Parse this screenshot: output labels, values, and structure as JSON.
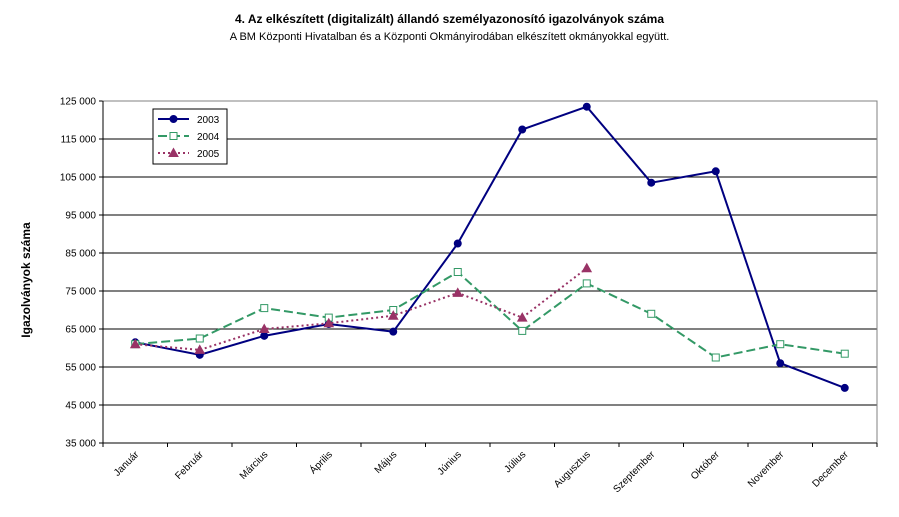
{
  "chart_data": {
    "type": "line",
    "title": "4. Az elkészített (digitalizált) állandó személyazonosító igazolványok száma",
    "subtitle": "A BM Központi Hivatalban és a Központi Okmányirodában elkészített okmányokkal együtt.",
    "xlabel": "",
    "ylabel": "Igazolványok száma",
    "ylim": [
      35000,
      125000
    ],
    "yticks": [
      35000,
      45000,
      55000,
      65000,
      75000,
      85000,
      95000,
      105000,
      115000,
      125000
    ],
    "ytick_labels": [
      "35 000",
      "45 000",
      "55 000",
      "65 000",
      "75 000",
      "85 000",
      "95 000",
      "105 000",
      "115 000",
      "125 000"
    ],
    "categories": [
      "Január",
      "Február",
      "Március",
      "Április",
      "Május",
      "Június",
      "Július",
      "Augusztus",
      "Szeptember",
      "Október",
      "November",
      "December"
    ],
    "grid": true,
    "legend_position": "top-left",
    "series": [
      {
        "name": "2003",
        "color": "#000080",
        "marker": "circle",
        "line": "solid",
        "values": [
          61500,
          58200,
          63200,
          66300,
          64300,
          87500,
          117500,
          123500,
          103500,
          106500,
          56000,
          49500
        ]
      },
      {
        "name": "2004",
        "color": "#339966",
        "marker": "square-open",
        "line": "dashed",
        "values": [
          61000,
          62500,
          70500,
          68000,
          70000,
          80000,
          64500,
          77000,
          69000,
          57500,
          61000,
          58500
        ]
      },
      {
        "name": "2005",
        "color": "#993366",
        "marker": "triangle",
        "line": "dotted",
        "values": [
          61000,
          59500,
          65000,
          66500,
          68500,
          74500,
          68000,
          81000,
          null,
          null,
          null,
          null
        ]
      }
    ]
  }
}
